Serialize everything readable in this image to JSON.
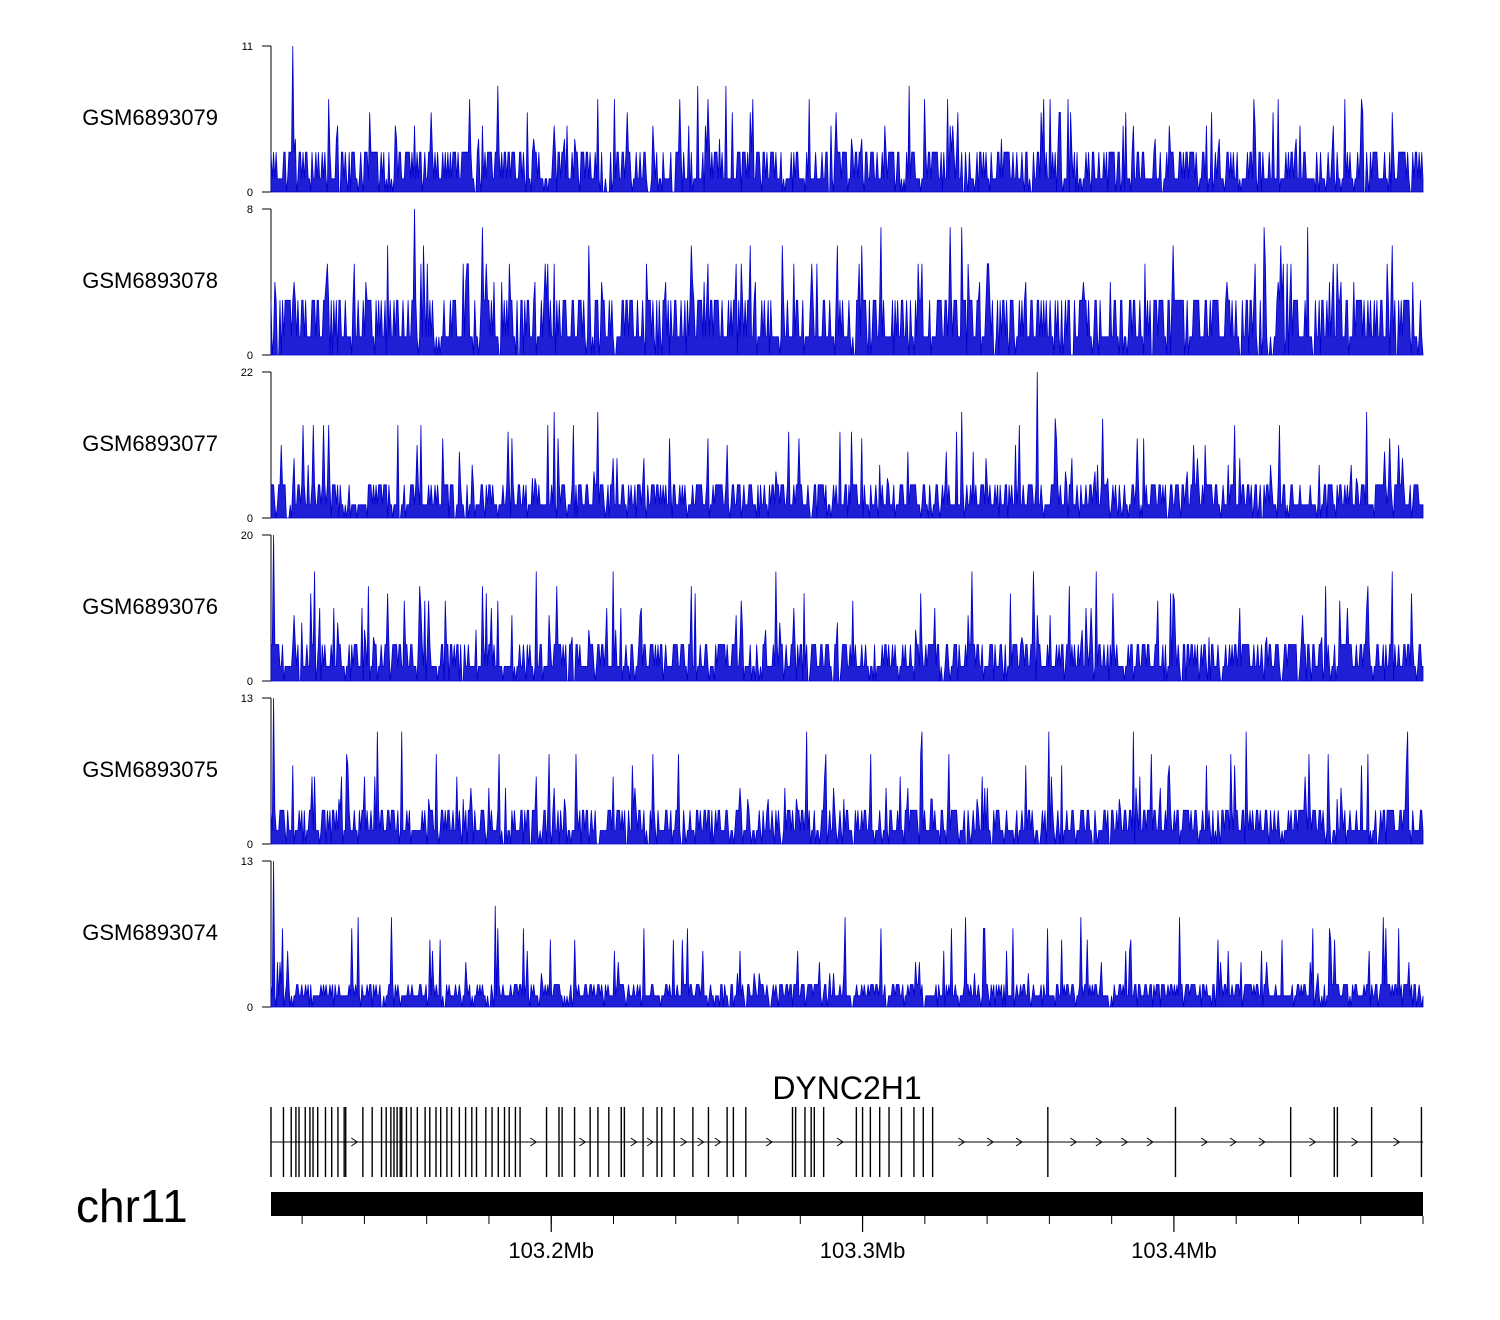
{
  "chart_data": {
    "type": "area",
    "title": "",
    "xlabel": "",
    "chromosome": "chr11",
    "gene": "DYNC2H1",
    "colors": {
      "signal": "#0000cc",
      "signal_fill": "#1f1fd6",
      "axis": "#000000",
      "gene": "#000000"
    },
    "xlim_mb": [
      103.11,
      103.48
    ],
    "x_ticks": [
      {
        "value": 103.2,
        "label": "103.2Mb"
      },
      {
        "value": 103.3,
        "label": "103.3Mb"
      },
      {
        "value": 103.4,
        "label": "103.4Mb"
      }
    ],
    "minor_tick_step_mb": 0.02,
    "series": [
      {
        "name": "GSM6893079",
        "ymin": 0,
        "ymax": 11,
        "ymin_label": "0",
        "ymax_label": "11",
        "baseline": 1,
        "typical": 3,
        "peaks": [
          [
            103.117,
            11
          ],
          [
            103.183,
            8
          ],
          [
            103.247,
            8
          ],
          [
            103.256,
            8
          ],
          [
            103.315,
            8
          ],
          [
            103.32,
            7
          ],
          [
            103.455,
            7
          ],
          [
            103.47,
            6
          ],
          [
            103.283,
            7
          ]
        ]
      },
      {
        "name": "GSM6893078",
        "ymin": 0,
        "ymax": 8,
        "ymin_label": "0",
        "ymax_label": "8",
        "baseline": 1,
        "typical": 3,
        "peaks": [
          [
            103.156,
            8
          ],
          [
            103.178,
            7
          ],
          [
            103.306,
            7
          ],
          [
            103.328,
            7
          ],
          [
            103.332,
            7
          ],
          [
            103.429,
            7
          ],
          [
            103.443,
            7
          ],
          [
            103.245,
            6
          ],
          [
            103.264,
            6
          ]
        ]
      },
      {
        "name": "GSM6893077",
        "ymin": 0,
        "ymax": 22,
        "ymin_label": "0",
        "ymax_label": "22",
        "baseline": 0,
        "typical": 5,
        "peaks": [
          [
            103.356,
            22
          ],
          [
            103.201,
            16
          ],
          [
            103.215,
            16
          ],
          [
            103.332,
            16
          ],
          [
            103.362,
            15
          ],
          [
            103.377,
            15
          ],
          [
            103.462,
            16
          ],
          [
            103.207,
            14
          ],
          [
            103.186,
            13
          ]
        ]
      },
      {
        "name": "GSM6893076",
        "ymin": 0,
        "ymax": 20,
        "ymin_label": "0",
        "ymax_label": "20",
        "baseline": 0,
        "typical": 5,
        "peaks": [
          [
            103.111,
            20
          ],
          [
            103.124,
            15
          ],
          [
            103.195,
            15
          ],
          [
            103.22,
            15
          ],
          [
            103.272,
            15
          ],
          [
            103.335,
            15
          ],
          [
            103.355,
            15
          ],
          [
            103.375,
            15
          ],
          [
            103.47,
            15
          ]
        ]
      },
      {
        "name": "GSM6893075",
        "ymin": 0,
        "ymax": 13,
        "ymin_label": "0",
        "ymax_label": "13",
        "baseline": 0,
        "typical": 3,
        "peaks": [
          [
            103.111,
            13
          ],
          [
            103.144,
            10
          ],
          [
            103.152,
            10
          ],
          [
            103.282,
            10
          ],
          [
            103.319,
            10
          ],
          [
            103.36,
            10
          ],
          [
            103.387,
            10
          ],
          [
            103.423,
            10
          ],
          [
            103.475,
            10
          ]
        ]
      },
      {
        "name": "GSM6893074",
        "ymin": 0,
        "ymax": 13,
        "ymin_label": "0",
        "ymax_label": "13",
        "baseline": 1,
        "typical": 2,
        "peaks": [
          [
            103.111,
            13
          ],
          [
            103.182,
            9
          ],
          [
            103.136,
            7
          ],
          [
            103.183,
            7
          ],
          [
            103.242,
            6
          ],
          [
            103.306,
            7
          ],
          [
            103.364,
            6
          ],
          [
            103.45,
            7
          ],
          [
            103.472,
            7
          ]
        ]
      }
    ],
    "gene_track": {
      "name": "DYNC2H1",
      "strand": "+",
      "start_mb": 103.11,
      "end_mb": 103.48,
      "exons_mb": [
        103.11,
        103.114,
        103.1165,
        103.118,
        103.119,
        103.121,
        103.1225,
        103.1235,
        103.125,
        103.1275,
        103.1295,
        103.1315,
        103.1335,
        103.134,
        103.1395,
        103.1425,
        103.1455,
        103.147,
        103.1485,
        103.1495,
        103.1505,
        103.1515,
        103.152,
        103.1535,
        103.155,
        103.157,
        103.1595,
        103.161,
        103.163,
        103.1645,
        103.1665,
        103.168,
        103.1705,
        103.1725,
        103.1745,
        103.176,
        103.179,
        103.181,
        103.183,
        103.185,
        103.1865,
        103.1885,
        103.19,
        103.1985,
        103.2025,
        103.2035,
        103.2075,
        103.2125,
        103.215,
        103.2185,
        103.2225,
        103.2235,
        103.2295,
        103.234,
        103.2355,
        103.2395,
        103.2455,
        103.2505,
        103.2565,
        103.2585,
        103.2625,
        103.2775,
        103.2785,
        103.2815,
        103.2835,
        103.2845,
        103.2875,
        103.298,
        103.3,
        103.3025,
        103.3055,
        103.3085,
        103.3125,
        103.3165,
        103.3195,
        103.3225,
        103.3595,
        103.4005,
        103.4375,
        103.4515,
        103.4525,
        103.4635,
        103.4795
      ]
    }
  }
}
